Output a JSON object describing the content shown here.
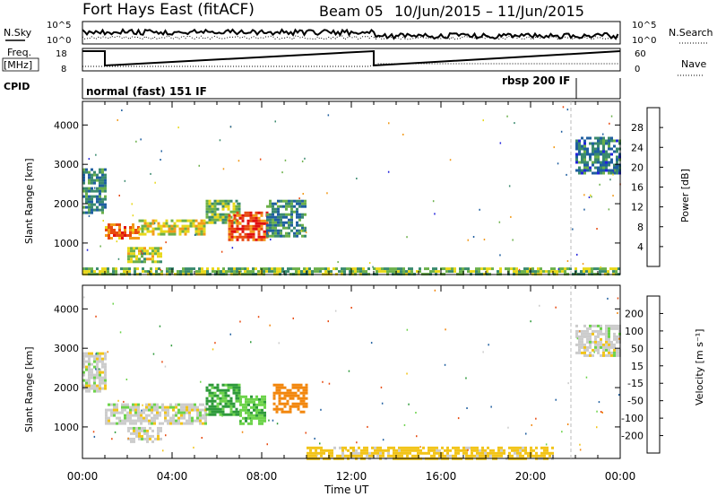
{
  "header": {
    "station": "Fort Hays East (fitACF)",
    "beam": "Beam 05",
    "date_range": "10/Jun/2015 – 11/Jun/2015"
  },
  "top_panels": {
    "nsky_label": "N.Sky",
    "nsearch_label": "N.Search",
    "nsky_ticks": [
      "10^5",
      "10^0"
    ],
    "freq_label_1": "Freq.",
    "freq_label_2": "[MHz]",
    "freq_ticks": [
      "18",
      "8"
    ],
    "nave_label": "Nave",
    "nave_ticks": [
      "60",
      "0"
    ],
    "cpid_label": "CPID",
    "cpid_segments": [
      {
        "label": "normal (fast) 151 IF",
        "start_hr": 0,
        "end_hr": 21.8
      },
      {
        "label": "rbsp 200 IF",
        "start_hr": 21.8,
        "end_hr": 24
      }
    ]
  },
  "chart_data": [
    {
      "type": "heatmap",
      "title": "",
      "xlabel": "",
      "ylabel": "Slant Range [km]",
      "xlim": [
        0,
        24
      ],
      "ylim": [
        200,
        4600
      ],
      "x_ticks": [
        "00:00",
        "04:00",
        "08:00",
        "12:00",
        "16:00",
        "20:00",
        "00:00"
      ],
      "y_ticks": [
        1000,
        2000,
        3000,
        4000
      ],
      "colorbar": {
        "label": "Power [dB]",
        "ticks": [
          4,
          8,
          12,
          16,
          20,
          24,
          28
        ],
        "colors": [
          "#2222dd",
          "#1f5fa0",
          "#3a8a6e",
          "#6bb04a",
          "#e8d81a",
          "#f29a18",
          "#e84a10",
          "#e01010"
        ]
      },
      "regions": [
        {
          "x": [
            0.0,
            1.0
          ],
          "y": [
            1800,
            2900
          ],
          "value": 9
        },
        {
          "x": [
            1.0,
            2.5
          ],
          "y": [
            1150,
            1500
          ],
          "value": 24
        },
        {
          "x": [
            2.5,
            5.5
          ],
          "y": [
            1200,
            1600
          ],
          "value": 18
        },
        {
          "x": [
            2.0,
            3.5
          ],
          "y": [
            550,
            900
          ],
          "value": 16
        },
        {
          "x": [
            5.5,
            7.0
          ],
          "y": [
            1500,
            2100
          ],
          "value": 14
        },
        {
          "x": [
            6.5,
            8.2
          ],
          "y": [
            1100,
            1800
          ],
          "value": 26
        },
        {
          "x": [
            8.2,
            10.0
          ],
          "y": [
            1150,
            2100
          ],
          "value": 10
        },
        {
          "x": [
            22.0,
            24.0
          ],
          "y": [
            2800,
            3700
          ],
          "value": 8
        },
        {
          "x": [
            0.0,
            24.0
          ],
          "y": [
            220,
            380
          ],
          "value": 14
        }
      ]
    },
    {
      "type": "heatmap",
      "title": "",
      "xlabel": "Time UT",
      "ylabel": "Slant Range [km]",
      "xlim": [
        0,
        24
      ],
      "ylim": [
        200,
        4600
      ],
      "x_ticks": [
        "00:00",
        "04:00",
        "08:00",
        "12:00",
        "16:00",
        "20:00",
        "00:00"
      ],
      "y_ticks": [
        1000,
        2000,
        3000,
        4000
      ],
      "colorbar": {
        "label": "Velocity [m s⁻¹]",
        "ticks": [
          200,
          100,
          50,
          15,
          -15,
          -50,
          -100,
          -200
        ],
        "colors": [
          "#2222dd",
          "#1f5fa0",
          "#2e9a3a",
          "#6cd34a",
          "#cccccc",
          "#f2c418",
          "#f2870e",
          "#e84a10",
          "#e01010"
        ]
      },
      "regions": [
        {
          "x": [
            0.0,
            1.0
          ],
          "y": [
            1900,
            2900
          ],
          "value": 0
        },
        {
          "x": [
            1.0,
            5.5
          ],
          "y": [
            1100,
            1600
          ],
          "value": 0
        },
        {
          "x": [
            2.0,
            3.5
          ],
          "y": [
            600,
            1000
          ],
          "value": 0
        },
        {
          "x": [
            5.5,
            7.0
          ],
          "y": [
            1300,
            2100
          ],
          "value": 60
        },
        {
          "x": [
            7.0,
            8.2
          ],
          "y": [
            1100,
            1800
          ],
          "value": 40
        },
        {
          "x": [
            8.5,
            10.0
          ],
          "y": [
            1400,
            2100
          ],
          "value": -70
        },
        {
          "x": [
            22.0,
            24.0
          ],
          "y": [
            2800,
            3600
          ],
          "value": 0
        },
        {
          "x": [
            10.0,
            21.0
          ],
          "y": [
            220,
            500
          ],
          "value": -30
        }
      ]
    }
  ]
}
